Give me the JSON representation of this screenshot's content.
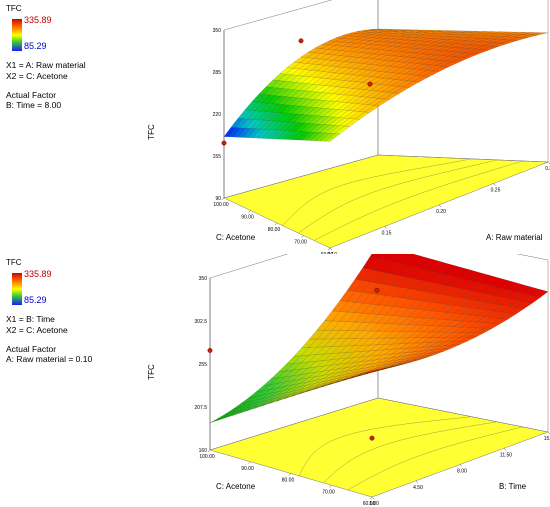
{
  "chart_data": [
    {
      "type": "surface3d",
      "response_label": "TFC",
      "colorbar": {
        "max": "335.89",
        "min": "85.29"
      },
      "legend_lines": [
        "X1 = A: Raw material",
        "X2 = C: Acetone"
      ],
      "actual_factor_title": "Actual Factor",
      "actual_factor_value": "B: Time = 8.00",
      "z_axis": {
        "label": "TFC",
        "ticks": [
          "90",
          "155",
          "220",
          "285",
          "350"
        ],
        "range": [
          90,
          350
        ]
      },
      "x_axis": {
        "label": "A: Raw material",
        "ticks": [
          "0.10",
          "0.15",
          "0.20",
          "0.25",
          "0.30"
        ],
        "range": [
          0.1,
          0.3
        ]
      },
      "y_axis": {
        "label": "C: Acetone",
        "ticks": [
          "60.00",
          "70.00",
          "80.00",
          "90.00",
          "100.00"
        ],
        "range": [
          60,
          100
        ]
      },
      "corner_values": {
        "x_low_y_low": 255,
        "x_high_y_low": 290,
        "x_low_y_high": 185,
        "x_high_y_high": 285
      },
      "curvature": 40,
      "design_points": [
        {
          "x": 0.1,
          "y": 100.0,
          "z": 175
        },
        {
          "x": 0.2,
          "y": 100.0,
          "z": 300
        },
        {
          "x": 0.2,
          "y": 80.0,
          "z": 255
        }
      ],
      "colors": [
        "#0000ff",
        "#00c8c8",
        "#00cc00",
        "#ffff00",
        "#ff8800",
        "#dd0000"
      ]
    },
    {
      "type": "surface3d",
      "response_label": "TFC",
      "colorbar": {
        "max": "335.89",
        "min": "85.29"
      },
      "legend_lines": [
        "X1 = B: Time",
        "X2 = C: Acetone"
      ],
      "actual_factor_title": "Actual Factor",
      "actual_factor_value": "A: Raw material = 0.10",
      "z_axis": {
        "label": "TFC",
        "ticks": [
          "160",
          "207.5",
          "255",
          "302.5",
          "350"
        ],
        "range": [
          160,
          350
        ]
      },
      "x_axis": {
        "label": "B: Time",
        "ticks": [
          "1.00",
          "4.50",
          "8.00",
          "11.50",
          "15.00"
        ],
        "range": [
          1,
          15
        ]
      },
      "y_axis": {
        "label": "C: Acetone",
        "ticks": [
          "60.00",
          "70.00",
          "80.00",
          "90.00",
          "100.00"
        ],
        "range": [
          60,
          100
        ]
      },
      "corner_values": {
        "x_low_y_low": 300,
        "x_high_y_low": 315,
        "x_low_y_high": 190,
        "x_high_y_high": 330
      },
      "curvature": -25,
      "design_points": [
        {
          "x": 1.0,
          "y": 100.0,
          "z": 270
        },
        {
          "x": 8.0,
          "y": 80.0,
          "z": 330
        },
        {
          "x": 1.0,
          "y": 60.0,
          "z": 225
        }
      ],
      "colors": [
        "#00aa00",
        "#33cc33",
        "#ccdd00",
        "#ffaa00",
        "#ff5500",
        "#dd0000"
      ]
    }
  ]
}
